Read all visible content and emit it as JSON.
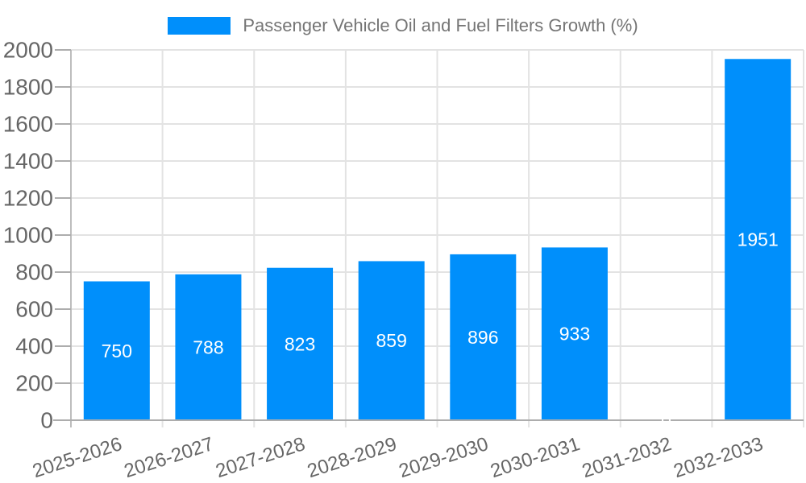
{
  "chart_data": {
    "type": "bar",
    "title": "Passenger Vehicle Oil and Fuel Filters Growth (%)",
    "legend_position": "top",
    "categories": [
      "2025-2026",
      "2026-2027",
      "2027-2028",
      "2028-2029",
      "2029-2030",
      "2030-2031",
      "2031-2032",
      "2032-2033"
    ],
    "values": [
      750,
      788,
      823,
      859,
      896,
      933,
      0,
      1951
    ],
    "xlabel": "",
    "ylabel": "",
    "ylim": [
      0,
      2000
    ],
    "ytick_step": 200,
    "ytick_labels": [
      "0",
      "200",
      "400",
      "600",
      "800",
      "1000",
      "1200",
      "1400",
      "1600",
      "1800",
      "2000"
    ],
    "grid": true,
    "colors": {
      "bar": "#008FFB",
      "grid": "#e3e3e3",
      "axis_line": "#adadad",
      "yaxis_line": "#bdbdbd",
      "tick_text": "#666666",
      "legend_text": "#757575",
      "data_label": "#ffffff",
      "background": "#ffffff"
    }
  }
}
